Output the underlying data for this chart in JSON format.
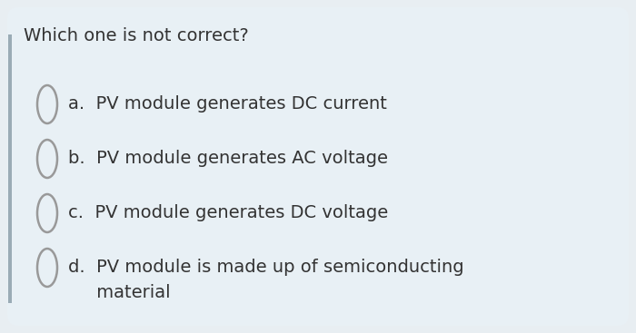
{
  "question": "Which one is not correct?",
  "options_line1": [
    "a.  PV module generates DC current",
    "b.  PV module generates AC voltage",
    "c.  PV module generates DC voltage",
    "d.  PV module is made up of semiconducting"
  ],
  "options_line2": [
    "",
    "",
    "",
    "     material"
  ],
  "bg_color": "#e8eef2",
  "card_bg": "#e8f0f5",
  "text_color": "#333333",
  "question_fontsize": 14,
  "option_fontsize": 14,
  "circle_edge_color": "#999999",
  "circle_face_color": "#e8f0f5",
  "left_bar_color": "#9aabb5",
  "fig_width": 7.0,
  "fig_height": 3.67
}
